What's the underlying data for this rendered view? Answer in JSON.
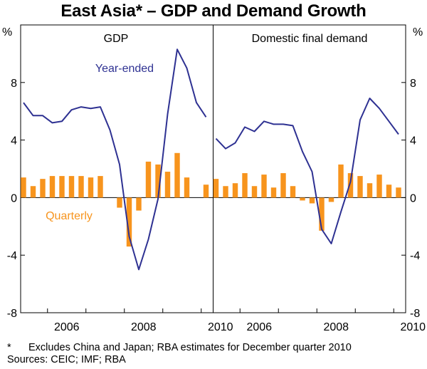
{
  "title": "East Asia* – GDP and Demand Growth",
  "units_left": "%",
  "units_right": "%",
  "footnote": {
    "marker": "*",
    "text": "Excludes China and Japan; RBA estimates for December quarter 2010",
    "sources": "Sources: CEIC; IMF; RBA"
  },
  "colors": {
    "line": "#2e3192",
    "bar": "#f7941d",
    "axis": "#000000"
  },
  "chart_data": [
    {
      "type": "bar+line",
      "title": "GDP",
      "ylim": [
        -8,
        12
      ],
      "yticks": [
        -8,
        -4,
        0,
        4,
        8
      ],
      "x_start": "2005-Q2",
      "x_tick_labels": [
        "2006",
        "2008",
        "2010"
      ],
      "series": [
        {
          "name": "Year-ended",
          "kind": "line",
          "values": [
            6.6,
            5.7,
            5.7,
            5.2,
            5.3,
            6.1,
            6.3,
            6.2,
            6.3,
            4.7,
            2.3,
            -2.7,
            -5.0,
            -2.9,
            -0.1,
            5.8,
            10.3,
            9.0,
            6.6,
            5.6
          ]
        },
        {
          "name": "Quarterly",
          "kind": "bar",
          "values": [
            1.4,
            0.8,
            1.3,
            1.5,
            1.5,
            1.5,
            1.5,
            1.4,
            1.5,
            null,
            -0.7,
            -3.4,
            -0.9,
            2.5,
            2.3,
            1.8,
            3.1,
            1.4,
            null,
            0.9
          ]
        }
      ]
    },
    {
      "type": "bar+line",
      "title": "Domestic final demand",
      "ylim": [
        -8,
        12
      ],
      "yticks": [
        -8,
        -4,
        0,
        4,
        8
      ],
      "x_start": "2005-Q2",
      "x_tick_labels": [
        "2006",
        "2008",
        "2010"
      ],
      "series": [
        {
          "name": "Year-ended",
          "kind": "line",
          "values": [
            4.1,
            3.4,
            3.8,
            4.9,
            4.6,
            5.3,
            5.1,
            5.1,
            5.0,
            3.2,
            1.8,
            -2.2,
            -3.2,
            -1.0,
            1.1,
            5.4,
            6.9,
            6.2,
            5.3,
            4.4
          ]
        },
        {
          "name": "Quarterly",
          "kind": "bar",
          "values": [
            1.3,
            0.8,
            1.0,
            1.7,
            0.8,
            1.6,
            0.7,
            1.7,
            0.8,
            -0.2,
            -0.4,
            -2.3,
            -0.3,
            2.3,
            1.7,
            1.5,
            1.0,
            1.6,
            0.9,
            0.7
          ]
        }
      ]
    }
  ]
}
